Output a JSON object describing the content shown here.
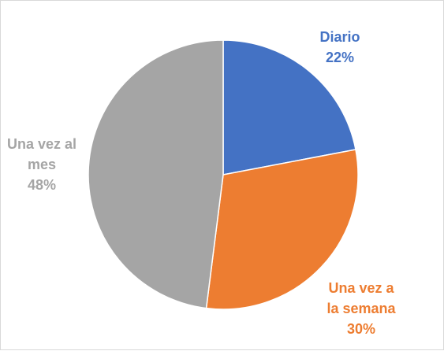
{
  "chart_data": {
    "type": "pie",
    "title": "",
    "slices": [
      {
        "label_lines": [
          "Diario"
        ],
        "value": 22,
        "value_label": "22%",
        "color": "#4472c4"
      },
      {
        "label_lines": [
          "Una vez a",
          "la semana"
        ],
        "value": 30,
        "value_label": "30%",
        "color": "#ed7d31"
      },
      {
        "label_lines": [
          "Una vez al",
          "mes"
        ],
        "value": 48,
        "value_label": "48%",
        "color": "#a5a5a5"
      }
    ],
    "start_angle_deg": 0,
    "direction": "clockwise",
    "legend": "none",
    "data_labels": "outside"
  }
}
